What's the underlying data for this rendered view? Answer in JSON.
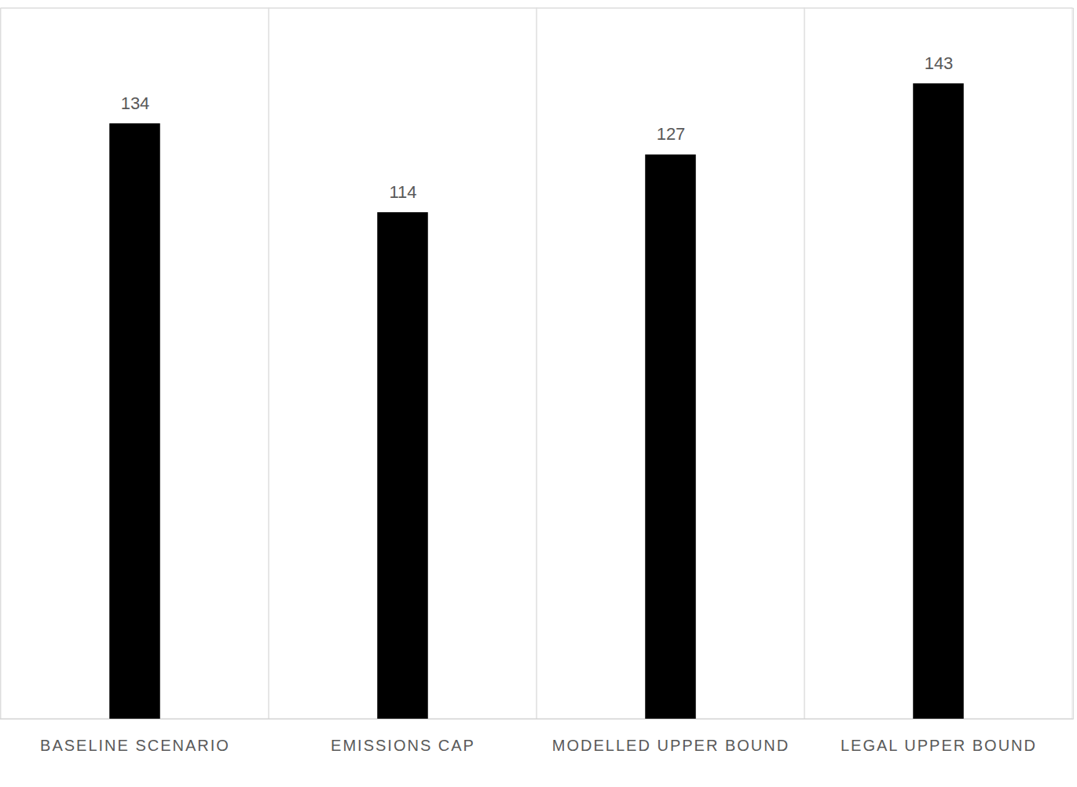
{
  "chart_data": {
    "type": "bar",
    "categories": [
      "BASELINE SCENARIO",
      "EMISSIONS CAP",
      "MODELLED UPPER BOUND",
      "LEGAL UPPER BOUND"
    ],
    "values": [
      134,
      114,
      127,
      143
    ],
    "color": "#000000",
    "ylim": [
      0,
      160
    ],
    "grid": true,
    "data_labels": true,
    "tick_labels": "x"
  }
}
